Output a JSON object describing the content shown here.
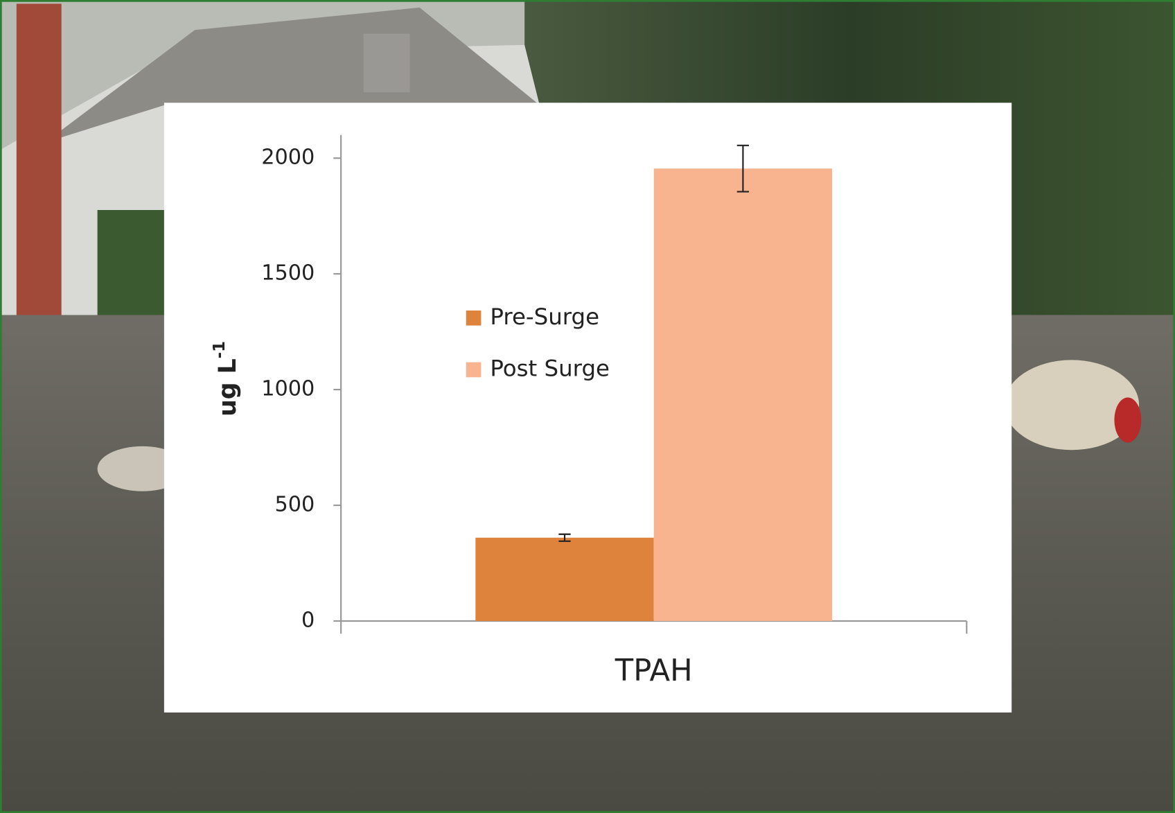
{
  "chart_data": {
    "type": "bar",
    "categories": [
      "TPAH"
    ],
    "series": [
      {
        "name": "Pre-Surge",
        "color": "#dd833c",
        "values": [
          360
        ],
        "errors": [
          15
        ]
      },
      {
        "name": "Post Surge",
        "color": "#f8b48e",
        "values": [
          1955
        ],
        "errors": [
          100
        ]
      }
    ],
    "y_label": "ug L",
    "y_label_superscript": "-1",
    "ylim": [
      0,
      2100
    ],
    "yticks": [
      0,
      500,
      1000,
      1500,
      2000
    ],
    "grid": false,
    "legend": "left"
  }
}
